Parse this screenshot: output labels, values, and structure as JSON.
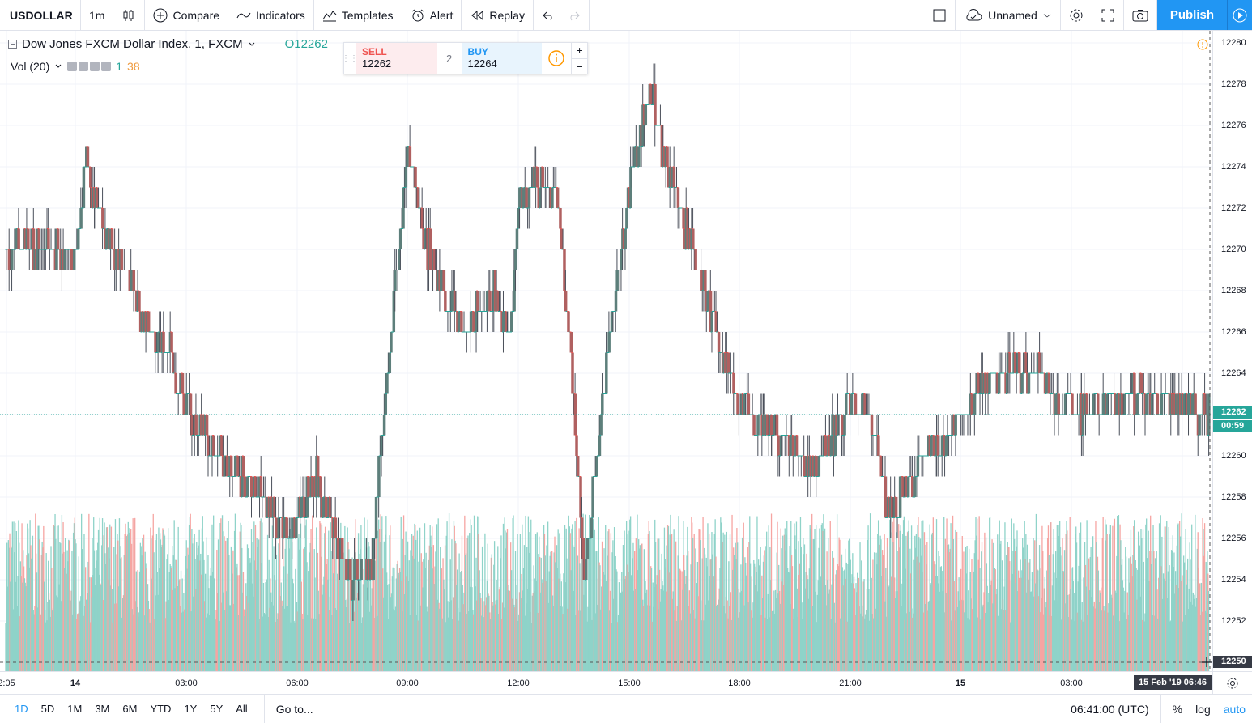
{
  "toolbar": {
    "symbol": "USDOLLAR",
    "interval": "1m",
    "compare": "Compare",
    "indicators": "Indicators",
    "templates": "Templates",
    "alert": "Alert",
    "replay": "Replay",
    "layout_name": "Unnamed",
    "publish": "Publish"
  },
  "legend": {
    "title": "Dow Jones FXCM Dollar Index, 1, FXCM",
    "ohlc": "O12262"
  },
  "volume_legend": {
    "label": "Vol (20)",
    "value1": "1",
    "value2": "38"
  },
  "trade": {
    "sell_label": "SELL",
    "sell_price": "12262",
    "quantity": "2",
    "buy_label": "BUY",
    "buy_price": "12264",
    "plus": "+",
    "minus": "−"
  },
  "colors": {
    "up": "#26a69a",
    "down": "#ef5350",
    "volume_up": "#8fd3c9",
    "volume_down": "#f6a5a2",
    "accent": "#2196f3"
  },
  "price_axis": {
    "ticks": [
      "12280",
      "12278",
      "12276",
      "12274",
      "12272",
      "12270",
      "12268",
      "12266",
      "12264",
      "12262",
      "12260",
      "12258",
      "12256",
      "12254",
      "12252",
      "12250"
    ],
    "current_price": "12262",
    "countdown": "00:59",
    "crosshair_price": "12250"
  },
  "time_axis": {
    "ticks": [
      {
        "label": "2:05",
        "bold": false
      },
      {
        "label": "14",
        "bold": true
      },
      {
        "label": "03:00",
        "bold": false
      },
      {
        "label": "06:00",
        "bold": false
      },
      {
        "label": "09:00",
        "bold": false
      },
      {
        "label": "12:00",
        "bold": false
      },
      {
        "label": "15:00",
        "bold": false
      },
      {
        "label": "18:00",
        "bold": false
      },
      {
        "label": "21:00",
        "bold": false
      },
      {
        "label": "15",
        "bold": true
      },
      {
        "label": "03:00",
        "bold": false
      }
    ],
    "crosshair_date": "15 Feb '19",
    "crosshair_time": "06:46"
  },
  "bottom_bar": {
    "ranges": [
      "1D",
      "5D",
      "1M",
      "3M",
      "6M",
      "YTD",
      "1Y",
      "5Y",
      "All"
    ],
    "active_range": "1D",
    "goto": "Go to...",
    "clock": "06:41:00 (UTC)",
    "percent": "%",
    "log": "log",
    "auto": "auto"
  },
  "chart_data": {
    "type": "candlestick",
    "interval": "1m",
    "ylim": [
      12250,
      12280
    ],
    "path": [
      [
        "14 00:00",
        12270
      ],
      [
        "14 00:15",
        12274
      ],
      [
        "14 00:45",
        12271
      ],
      [
        "14 01:30",
        12268
      ],
      [
        "14 02:00",
        12266
      ],
      [
        "14 02:30",
        12265
      ],
      [
        "14 03:00",
        12262
      ],
      [
        "14 04:00",
        12260
      ],
      [
        "14 05:00",
        12258
      ],
      [
        "14 05:45",
        12256
      ],
      [
        "14 06:30",
        12259
      ],
      [
        "14 07:00",
        12256
      ],
      [
        "14 07:30",
        12254
      ],
      [
        "14 08:00",
        12255
      ],
      [
        "14 08:30",
        12266
      ],
      [
        "14 09:00",
        12275
      ],
      [
        "14 09:30",
        12270
      ],
      [
        "14 10:30",
        12266
      ],
      [
        "14 11:15",
        12268
      ],
      [
        "14 11:45",
        12266
      ],
      [
        "14 12:00",
        12273
      ],
      [
        "14 13:00",
        12273
      ],
      [
        "14 13:30",
        12262
      ],
      [
        "14 13:45",
        12254
      ],
      [
        "14 14:15",
        12263
      ],
      [
        "14 15:00",
        12273
      ],
      [
        "14 15:30",
        12278
      ],
      [
        "14 16:00",
        12274
      ],
      [
        "14 16:30",
        12271
      ],
      [
        "14 17:00",
        12268
      ],
      [
        "14 17:30",
        12265
      ],
      [
        "14 18:00",
        12262
      ],
      [
        "14 19:00",
        12261
      ],
      [
        "14 20:00",
        12259
      ],
      [
        "14 21:00",
        12263
      ],
      [
        "14 21:30",
        12262
      ],
      [
        "14 22:00",
        12257
      ],
      [
        "14 23:00",
        12260
      ],
      [
        "15 00:00",
        12262
      ],
      [
        "15 01:00",
        12264
      ],
      [
        "15 02:00",
        12264
      ],
      [
        "15 03:00",
        12262
      ],
      [
        "15 05:00",
        12263
      ],
      [
        "15 06:41",
        12262
      ]
    ]
  }
}
